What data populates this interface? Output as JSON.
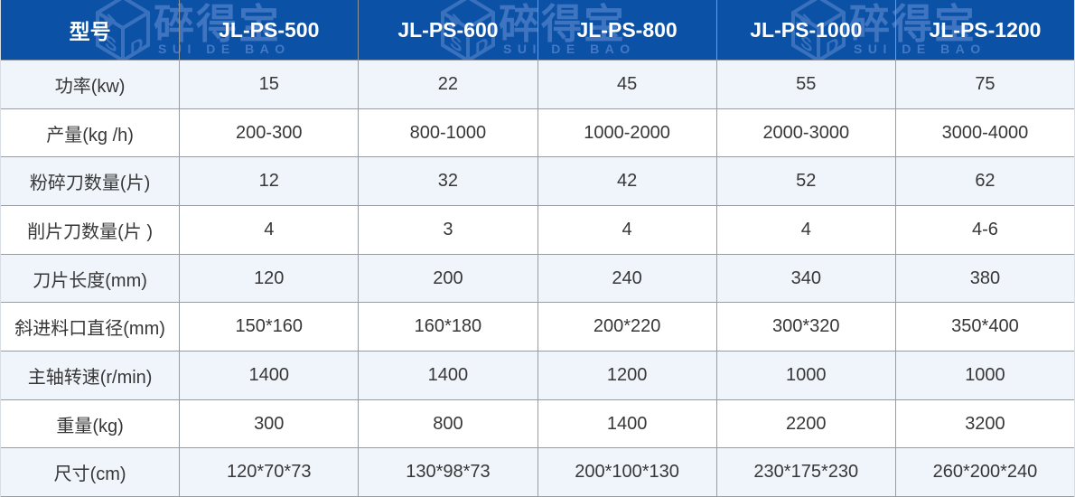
{
  "table": {
    "model_header_label": "型号",
    "models": [
      "JL-PS-500",
      "JL-PS-600",
      "JL-PS-800",
      "JL-PS-1000",
      "JL-PS-1200"
    ],
    "rows": [
      {
        "label": "功率(kw)",
        "values": [
          "15",
          "22",
          "45",
          "55",
          "75"
        ]
      },
      {
        "label": "产量(kg /h)",
        "values": [
          "200-300",
          "800-1000",
          "1000-2000",
          "2000-3000",
          "3000-4000"
        ]
      },
      {
        "label": "粉碎刀数量(片)",
        "values": [
          "12",
          "32",
          "42",
          "52",
          "62"
        ]
      },
      {
        "label": "削片刀数量(片 )",
        "values": [
          "4",
          "3",
          "4",
          "4",
          "4-6"
        ]
      },
      {
        "label": "刀片长度(mm)",
        "values": [
          "120",
          "200",
          "240",
          "340",
          "380"
        ]
      },
      {
        "label": "斜进料口直径(mm)",
        "values": [
          "150*160",
          "160*180",
          "200*220",
          "300*320",
          "350*400"
        ]
      },
      {
        "label": "主轴转速(r/min)",
        "values": [
          "1400",
          "1400",
          "1200",
          "1000",
          "1000"
        ]
      },
      {
        "label": "重量(kg)",
        "values": [
          "300",
          "800",
          "1400",
          "2200",
          "3200"
        ]
      },
      {
        "label": "尺寸(cm)",
        "values": [
          "120*70*73",
          "130*98*73",
          "200*100*130",
          "230*175*230",
          "260*200*240"
        ]
      }
    ]
  },
  "watermark": {
    "brand_cn": "碎得宝",
    "brand_en": "SUI DE BAO",
    "cube_letters": {
      "top": "E",
      "left": "S",
      "right": "D"
    }
  },
  "colors": {
    "header_bg": "#0B51A6",
    "header_text": "#FFFFFF",
    "watermark_blue": "#3E74C0",
    "row_alt": "#F0F5FB",
    "row_white": "#FFFFFF",
    "grid_line": "#989DA3",
    "body_text": "#373737"
  }
}
